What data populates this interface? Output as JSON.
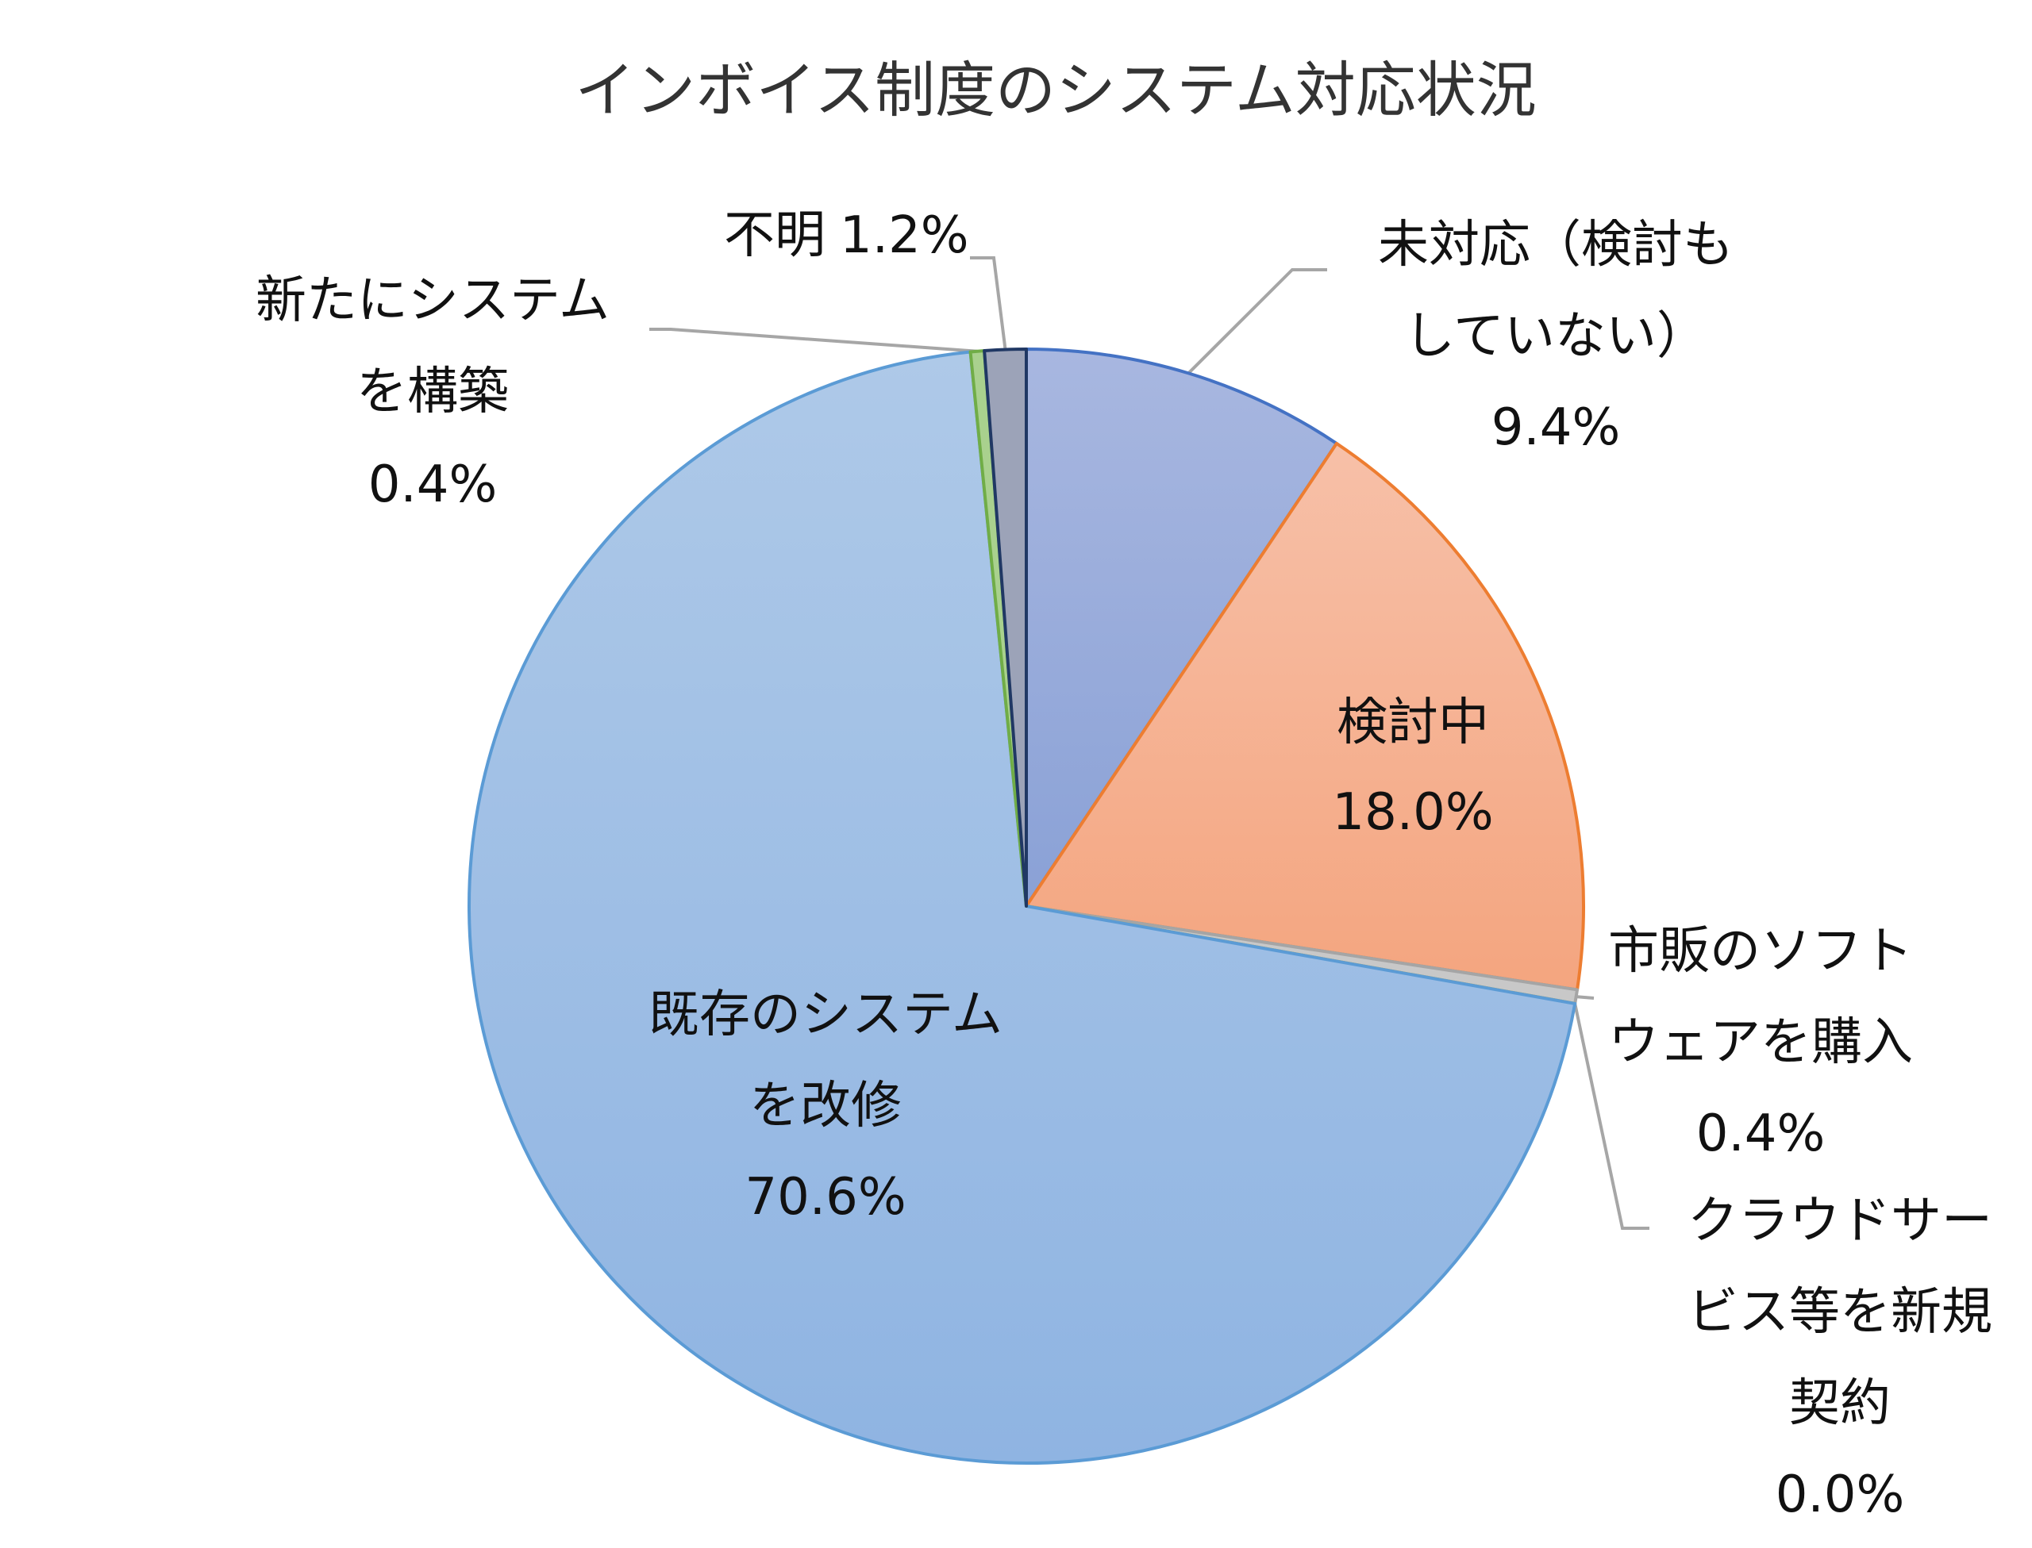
{
  "chart_data": {
    "type": "pie",
    "title": "インボイス制度のシステム対応状況",
    "start_angle_deg": 0,
    "direction": "clockwise",
    "slices": [
      {
        "key": "mitaiou",
        "label_lines": [
          "未対応（検討も",
          "していない）"
        ],
        "value": 9.4,
        "value_label": "9.4%",
        "color": "#97a9da",
        "stroke": "#4472c4"
      },
      {
        "key": "kentouchu",
        "label_lines": [
          "検討中"
        ],
        "value": 18.0,
        "value_label": "18.0%",
        "color": "#f6b194",
        "stroke": "#ed7d31"
      },
      {
        "key": "shihan",
        "label_lines": [
          "市販のソフト",
          "ウェアを購入"
        ],
        "value": 0.4,
        "value_label": "0.4%",
        "color": "#c8c8c8",
        "stroke": "#a5a5a5"
      },
      {
        "key": "cloud",
        "label_lines": [
          "クラウドサー",
          "ビス等を新規",
          "契約"
        ],
        "value": 0.0,
        "value_label": "0.0%",
        "color": "#ffd966",
        "stroke": "#ffc000"
      },
      {
        "key": "kizon",
        "label_lines": [
          "既存のシステム",
          "を改修"
        ],
        "value": 70.6,
        "value_label": "70.6%",
        "color": "#a2c0e5",
        "stroke": "#5b9bd5"
      },
      {
        "key": "shinki",
        "label_lines": [
          "新たにシステム",
          "を構築"
        ],
        "value": 0.4,
        "value_label": "0.4%",
        "color": "#a9d18e",
        "stroke": "#70ad47"
      },
      {
        "key": "fumei",
        "label_lines": [
          "不明"
        ],
        "value": 1.2,
        "value_label": "1.2%",
        "color": "#9ca3b8",
        "stroke": "#203864"
      }
    ],
    "legend": "none"
  }
}
